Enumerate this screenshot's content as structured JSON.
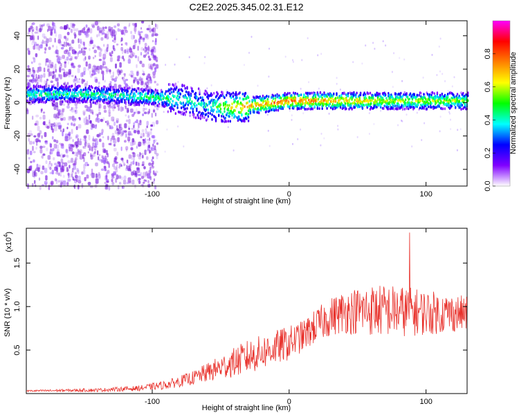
{
  "title": "C2E2.2025.345.02.31.E12",
  "chart_data": [
    {
      "type": "heatmap",
      "xlabel": "Height of straight line (km)",
      "ylabel": "Frequency (Hz)",
      "xlim": [
        -192,
        130
      ],
      "ylim": [
        -50,
        49
      ],
      "x_ticks": [
        -100,
        0,
        100
      ],
      "x_tick_labels": [
        "-100",
        "0",
        "100"
      ],
      "y_ticks": [
        -40,
        -20,
        0,
        20,
        40
      ],
      "y_tick_labels": [
        "-40",
        "-20",
        "0",
        "20",
        "40"
      ],
      "colorbar": {
        "label": "Normalized spectral amplitude",
        "range": [
          0,
          1
        ],
        "ticks": [
          0.0,
          0.2,
          0.4,
          0.6,
          0.8
        ],
        "tick_labels": [
          "0.0",
          "0.2",
          "0.4",
          "0.6",
          "0.8"
        ],
        "colormap": "rainbow",
        "colors": [
          "#ffffff",
          "#8000ff",
          "#0000ff",
          "#00ffff",
          "#00ff00",
          "#ffff00",
          "#ff8000",
          "#ff0000",
          "#ff00ff"
        ]
      },
      "ridge": {
        "x": [
          -192,
          -150,
          -120,
          -100,
          -80,
          -60,
          -40,
          -20,
          0,
          20,
          40,
          60,
          80,
          100,
          130
        ],
        "frequency": [
          5,
          5,
          4,
          3,
          2,
          -2,
          -3,
          -1,
          1,
          1,
          1,
          1,
          1,
          1,
          1
        ],
        "amplitude": [
          0.45,
          0.45,
          0.45,
          0.48,
          0.42,
          0.4,
          0.7,
          0.75,
          0.8,
          0.75,
          0.7,
          0.65,
          0.6,
          0.6,
          0.55
        ]
      }
    },
    {
      "type": "line",
      "xlabel": "Height of straight line (km)",
      "ylabel": "SNR (10 * v/v)",
      "y_scale_label": "(x10",
      "y_scale_exponent": "4",
      "xlim": [
        -192,
        130
      ],
      "ylim": [
        0,
        1.9
      ],
      "x_ticks": [
        -100,
        0,
        100
      ],
      "x_tick_labels": [
        "-100",
        "0",
        "100"
      ],
      "y_ticks": [
        0.5,
        1.0,
        1.5
      ],
      "y_tick_labels": [
        "0.5",
        "1.0",
        "1.5"
      ],
      "series": [
        {
          "color": "#e8302a",
          "trend_x": [
            -192,
            -140,
            -110,
            -90,
            -70,
            -50,
            -30,
            -15,
            0,
            10,
            20,
            30,
            40,
            60,
            80,
            100,
            130
          ],
          "trend_y": [
            0.03,
            0.04,
            0.06,
            0.1,
            0.18,
            0.3,
            0.42,
            0.5,
            0.58,
            0.66,
            0.78,
            0.88,
            0.94,
            0.96,
            0.95,
            0.93,
            0.92
          ],
          "noise": [
            0.01,
            0.02,
            0.03,
            0.05,
            0.08,
            0.14,
            0.2,
            0.2,
            0.2,
            0.18,
            0.2,
            0.22,
            0.25,
            0.3,
            0.3,
            0.26,
            0.2
          ],
          "peak_x": 88,
          "peak_y": 1.85
        }
      ]
    }
  ]
}
